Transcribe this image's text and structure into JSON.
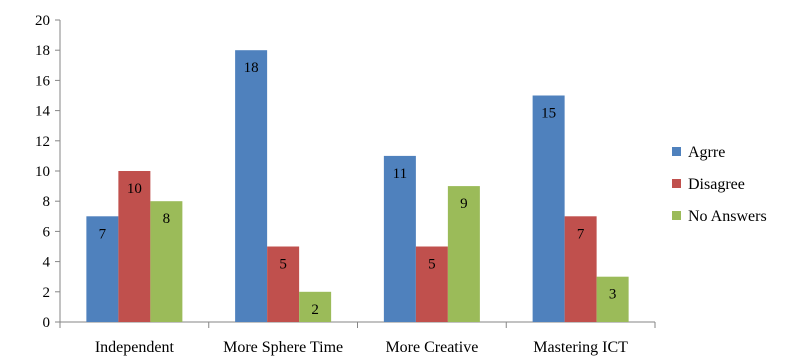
{
  "chart_data": {
    "type": "bar",
    "categories": [
      "Independent",
      "More Sphere Time",
      "More Creative",
      "Mastering ICT"
    ],
    "series": [
      {
        "name": "Agrre",
        "color": "#4f81bd",
        "values": [
          7,
          18,
          11,
          15
        ]
      },
      {
        "name": "Disagree",
        "color": "#c0504d",
        "values": [
          10,
          5,
          5,
          7
        ]
      },
      {
        "name": "No Answers",
        "color": "#9bbb59",
        "values": [
          8,
          2,
          9,
          3
        ]
      }
    ],
    "ylim": [
      0,
      20
    ],
    "yticks": [
      0,
      2,
      4,
      6,
      8,
      10,
      12,
      14,
      16,
      18,
      20
    ],
    "grid": false,
    "legend_position": "right",
    "data_labels": true
  }
}
